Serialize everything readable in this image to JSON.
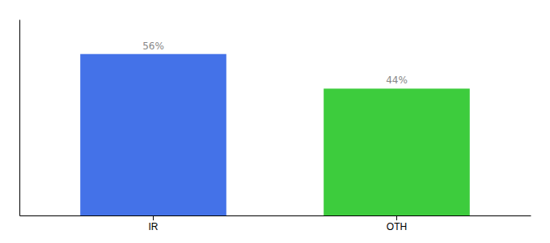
{
  "chart_data": {
    "type": "bar",
    "categories": [
      "IR",
      "OTH"
    ],
    "values": [
      56,
      44
    ],
    "value_labels": [
      "56%",
      "44%"
    ],
    "colors": [
      "#4472e8",
      "#3dcc3d"
    ],
    "ylim": [
      0,
      68
    ],
    "data_labels": true,
    "tick_labels": "x"
  }
}
